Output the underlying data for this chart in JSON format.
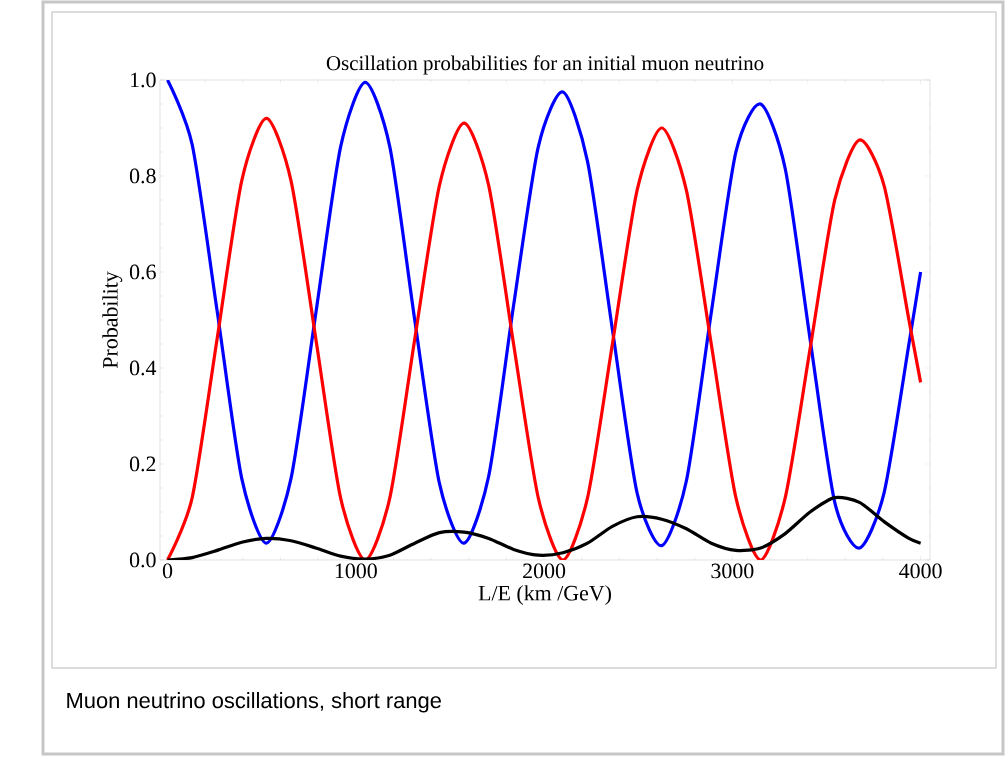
{
  "chart_data": {
    "type": "line",
    "title": "Oscillation probabilities for an initial muon neutrino",
    "xlabel": "L/E (km /GeV)",
    "ylabel": "Probability",
    "annotations": [
      "Muon neutrino oscillations, short range"
    ],
    "x": [
      0,
      131,
      263,
      394,
      525,
      656,
      788,
      919,
      1050,
      1181,
      1313,
      1444,
      1575,
      1706,
      1838,
      1969,
      2100,
      2231,
      2363,
      2494,
      2625,
      2756,
      2888,
      3019,
      3150,
      3281,
      3413,
      3544,
      3675,
      3806,
      3938,
      4000
    ],
    "series": [
      {
        "color": "#0000ff",
        "values": [
          1.0,
          0.865,
          0.52,
          0.17,
          0.035,
          0.17,
          0.515,
          0.86,
          0.995,
          0.86,
          0.5,
          0.16,
          0.035,
          0.175,
          0.53,
          0.86,
          0.975,
          0.83,
          0.48,
          0.14,
          0.03,
          0.165,
          0.515,
          0.85,
          0.95,
          0.815,
          0.46,
          0.12,
          0.025,
          0.14,
          0.45,
          0.6
        ]
      },
      {
        "color": "#ff0000",
        "values": [
          0,
          0.13,
          0.46,
          0.79,
          0.92,
          0.79,
          0.46,
          0.13,
          0,
          0.13,
          0.46,
          0.78,
          0.91,
          0.78,
          0.45,
          0.13,
          0,
          0.13,
          0.45,
          0.77,
          0.9,
          0.77,
          0.45,
          0.13,
          0,
          0.13,
          0.44,
          0.75,
          0.875,
          0.78,
          0.5,
          0.37
        ]
      },
      {
        "color": "#000000",
        "values": [
          0,
          0.005,
          0.02,
          0.037,
          0.045,
          0.04,
          0.025,
          0.008,
          0.002,
          0.01,
          0.035,
          0.057,
          0.058,
          0.045,
          0.022,
          0.01,
          0.015,
          0.035,
          0.07,
          0.09,
          0.085,
          0.065,
          0.035,
          0.02,
          0.025,
          0.055,
          0.1,
          0.13,
          0.12,
          0.08,
          0.045,
          0.035
        ]
      }
    ],
    "xlim": [
      -40,
      4050
    ],
    "ylim": [
      0,
      1.0
    ],
    "xticks": [
      0,
      1000,
      2000,
      3000,
      4000
    ],
    "yticks": [
      {
        "value": 0,
        "label": "0.0"
      },
      {
        "value": 0.2,
        "label": "0.2"
      },
      {
        "value": 0.4,
        "label": "0.4"
      },
      {
        "value": 0.6,
        "label": "0.6"
      },
      {
        "value": 0.8,
        "label": "0.8"
      },
      {
        "value": 1.0,
        "label": "1.0"
      }
    ]
  }
}
